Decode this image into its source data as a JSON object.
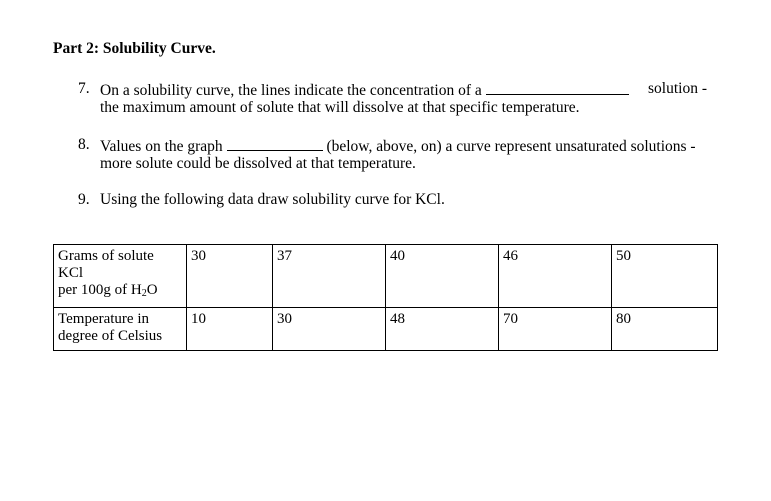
{
  "part_heading": "Part 2: Solubility Curve.",
  "questions": [
    {
      "number": "7.",
      "line1_before": "On a solubility curve, the lines indicate the concentration of a",
      "line1_after": "solution -",
      "line2": "the maximum amount of solute that will dissolve at that specific temperature."
    },
    {
      "number": "8.",
      "line1_before": "Values on the graph",
      "line1_after": "(below, above, on) a curve represent unsaturated solutions -",
      "line2": "more solute could be dissolved at that temperature."
    },
    {
      "number": "9.",
      "line1": "Using the following data draw solubility curve for KCl."
    }
  ],
  "table": {
    "row1_label_lines": [
      "Grams of solute",
      "KCl",
      "per 100g of H"
    ],
    "row1_label_sub": "2",
    "row1_label_tail": "O",
    "row1_values": [
      "30",
      "37",
      "40",
      "46",
      "50"
    ],
    "row2_label_lines": [
      "Temperature in",
      "degree of Celsius"
    ],
    "row2_values": [
      "10",
      "30",
      "48",
      "70",
      "80"
    ]
  }
}
